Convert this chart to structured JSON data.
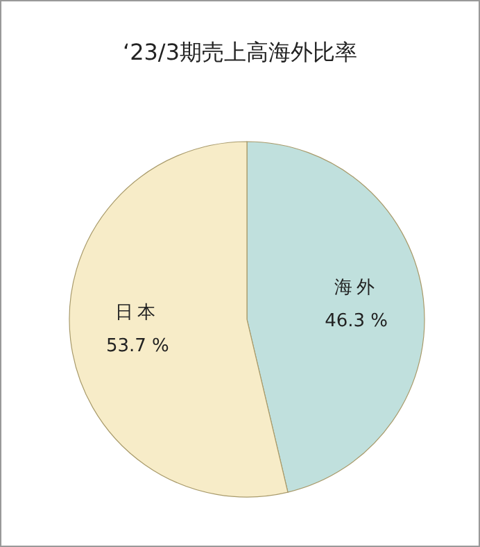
{
  "chart_data": {
    "type": "pie",
    "title": "‘23/3期売上高海外比率",
    "categories": [
      "海外",
      "日本"
    ],
    "values": [
      46.3,
      53.7
    ],
    "value_labels": [
      "46.3 %",
      "53.7 %"
    ],
    "colors": [
      "#c0e0dd",
      "#f7ecc8"
    ]
  }
}
